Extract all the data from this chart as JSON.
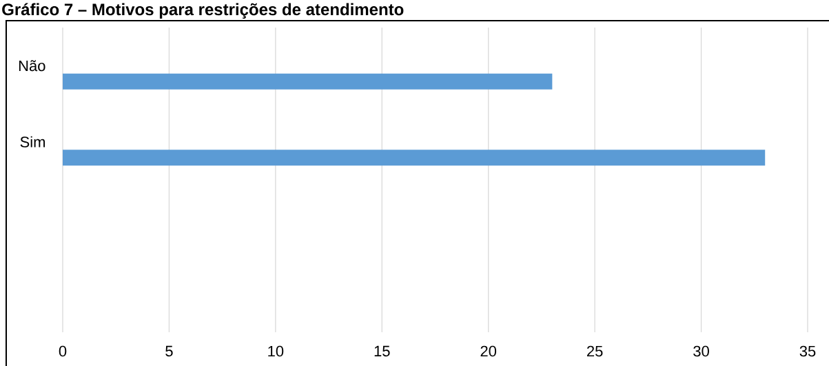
{
  "chart_data": {
    "type": "bar",
    "orientation": "horizontal",
    "title": "Gráfico 7 – Motivos para restrições de atendimento",
    "categories": [
      "Não",
      "Sim",
      null,
      null
    ],
    "values": [
      23,
      33,
      null,
      null
    ],
    "color": "#5b9bd5",
    "xlim": [
      0,
      35
    ],
    "xticks": [
      0,
      5,
      10,
      15,
      20,
      25,
      30,
      35
    ],
    "grid": "x"
  }
}
